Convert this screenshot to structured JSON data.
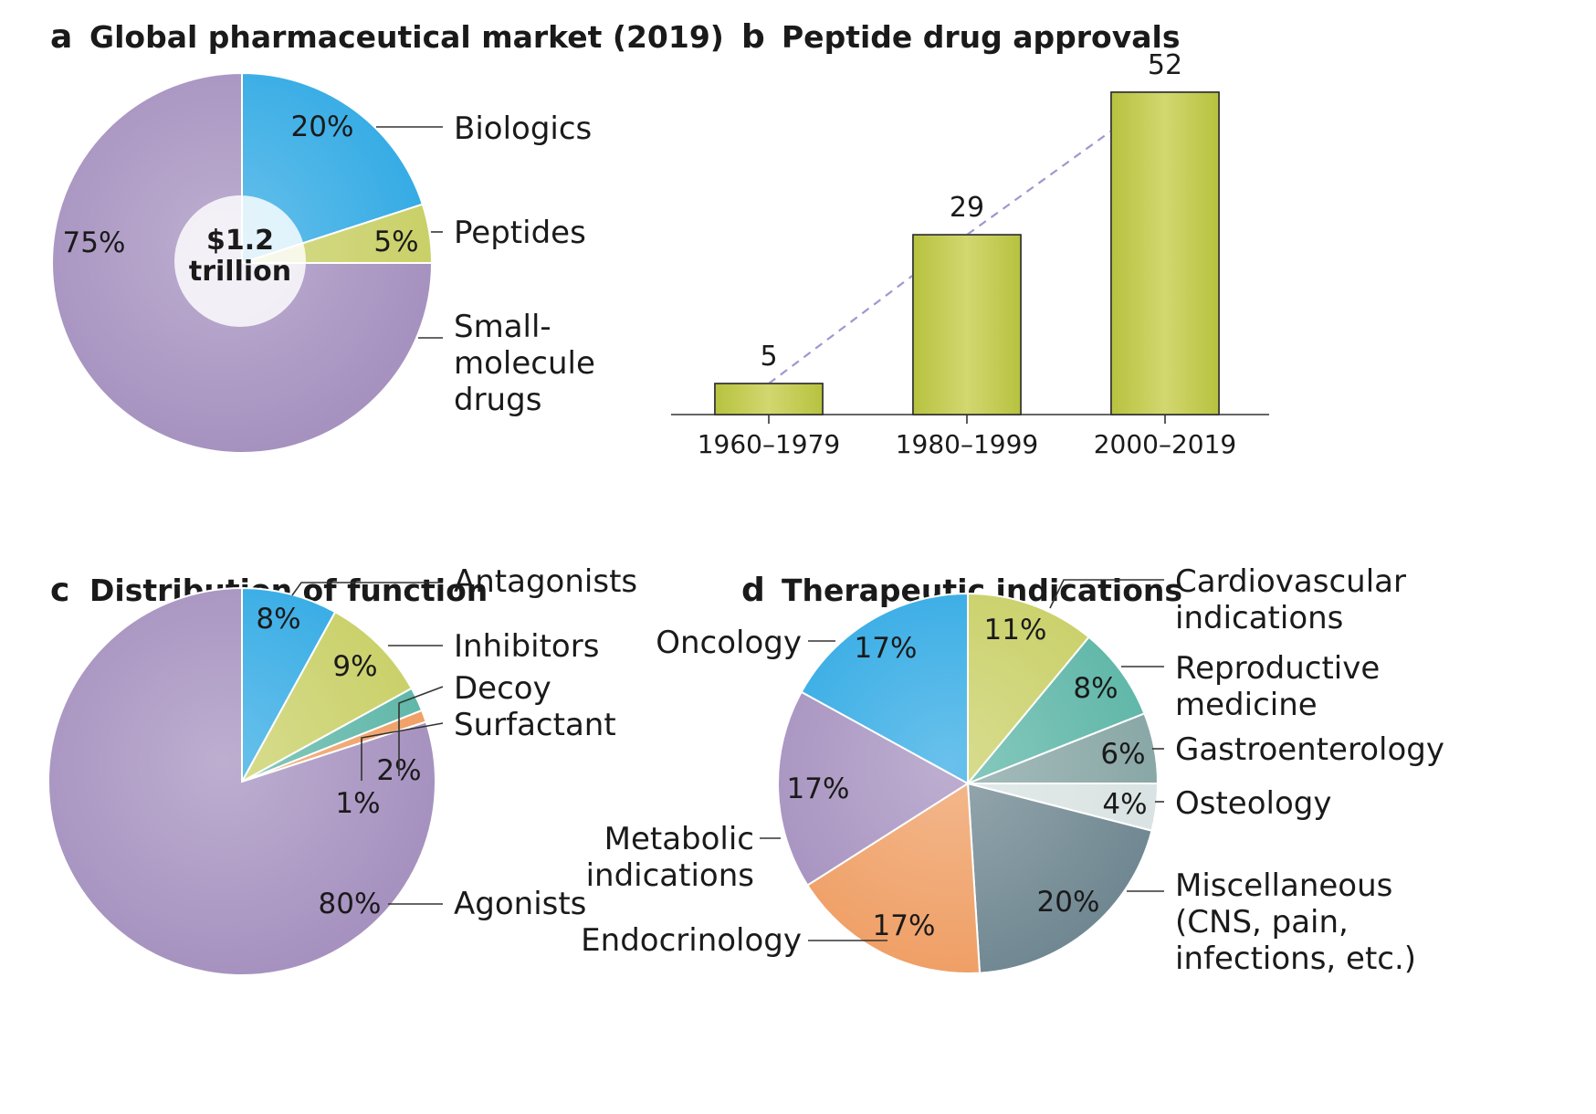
{
  "chart_data": [
    {
      "id": "a",
      "type": "pie",
      "letter": "a",
      "title": "Global pharmaceutical market (2019)",
      "center_label": [
        "$1.2",
        "trillion"
      ],
      "slices": [
        {
          "label": [
            "Biologics"
          ],
          "value": 20,
          "pct_label": "20%",
          "color": "#2fa9e4"
        },
        {
          "label": [
            "Peptides"
          ],
          "value": 5,
          "pct_label": "5%",
          "color": "#c8cf64"
        },
        {
          "label": [
            "Small-",
            "molecule",
            "drugs"
          ],
          "value": 75,
          "pct_label": "75%",
          "color": "#a48fbe"
        }
      ]
    },
    {
      "id": "b",
      "type": "bar",
      "letter": "b",
      "title": "Peptide drug approvals",
      "categories": [
        "1960–1979",
        "1980–1999",
        "2000–2019"
      ],
      "values": [
        5,
        29,
        52
      ],
      "value_labels": [
        "5",
        "29",
        "52"
      ],
      "bar_color": "#c3cc52",
      "trend_line": "dashed",
      "trend_color": "#9f97cf",
      "ylim": [
        0,
        52
      ]
    },
    {
      "id": "c",
      "type": "pie",
      "letter": "c",
      "title": "Distribution of function",
      "slices": [
        {
          "label": [
            "Antagonists"
          ],
          "value": 8,
          "pct_label": "8%",
          "color": "#2fa9e4"
        },
        {
          "label": [
            "Inhibitors"
          ],
          "value": 9,
          "pct_label": "9%",
          "color": "#c8cf64"
        },
        {
          "label": [
            "Decoy"
          ],
          "value": 2,
          "pct_label": "2%",
          "color": "#5bb5a6"
        },
        {
          "label": [
            "Surfactant"
          ],
          "value": 1,
          "pct_label": "1%",
          "color": "#ef9d62"
        },
        {
          "label": [
            "Agonists"
          ],
          "value": 80,
          "pct_label": "80%",
          "color": "#a48fbe"
        }
      ]
    },
    {
      "id": "d",
      "type": "pie",
      "letter": "d",
      "title": "Therapeutic indications",
      "slices": [
        {
          "label": [
            "Cardiovascular",
            "indications"
          ],
          "value": 11,
          "pct_label": "11%",
          "color": "#c8cf64"
        },
        {
          "label": [
            "Reproductive",
            "medicine"
          ],
          "value": 8,
          "pct_label": "8%",
          "color": "#5bb5a6"
        },
        {
          "label": [
            "Gastroenterology"
          ],
          "value": 6,
          "pct_label": "6%",
          "color": "#86a5a4"
        },
        {
          "label": [
            "Osteology"
          ],
          "value": 4,
          "pct_label": "4%",
          "color": "#d9e2e2"
        },
        {
          "label": [
            "Miscellaneous",
            "(CNS, pain,",
            "infections, etc.)"
          ],
          "value": 20,
          "pct_label": "20%",
          "color": "#6e8690"
        },
        {
          "label": [
            "Endocrinology"
          ],
          "value": 17,
          "pct_label": "17%",
          "color": "#ef9d62"
        },
        {
          "label": [
            "Metabolic",
            "indications"
          ],
          "value": 17,
          "pct_label": "17%",
          "color": "#a48fbe"
        },
        {
          "label": [
            "Oncology"
          ],
          "value": 17,
          "pct_label": "17%",
          "color": "#2fa9e4"
        }
      ]
    }
  ]
}
